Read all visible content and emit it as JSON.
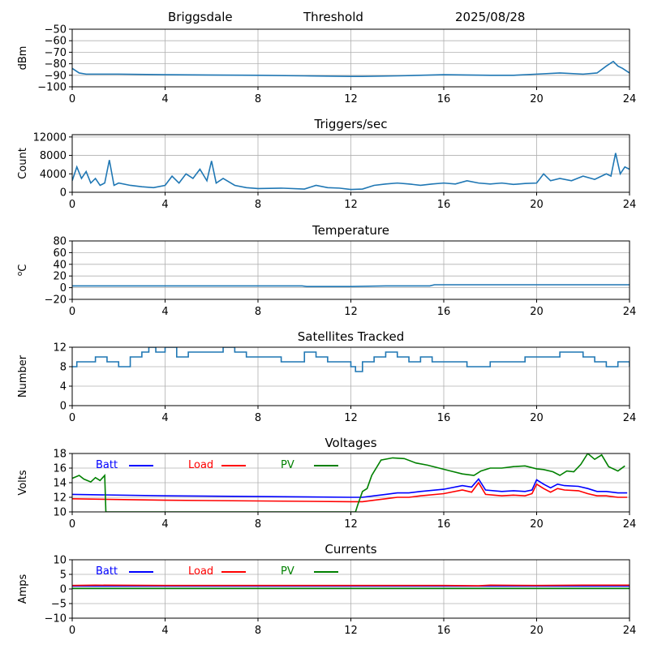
{
  "header": {
    "site": "Briggsdale",
    "threshold": "Threshold",
    "date": "2025/08/28"
  },
  "colors": {
    "series": "#1f77b4",
    "batt": "#0000ff",
    "load": "#ff0000",
    "pv": "#008000",
    "grid": "#b0b0b0"
  },
  "chart_data": [
    {
      "type": "line",
      "title": "",
      "ylabel": "dBm",
      "xlim": [
        0,
        24
      ],
      "xticks": [
        0,
        4,
        8,
        12,
        16,
        20,
        24
      ],
      "ylim": [
        -100,
        -50
      ],
      "yticks": [
        -100,
        -90,
        -80,
        -70,
        -60,
        -50
      ],
      "grid": true,
      "series": [
        {
          "x": [
            0,
            0.3,
            0.6,
            1,
            2,
            4,
            8,
            10,
            12,
            12.5,
            14,
            16,
            18,
            19,
            20,
            21,
            22,
            22.6,
            23,
            23.3,
            23.5,
            23.7,
            24
          ],
          "values": [
            -84,
            -88,
            -89,
            -89,
            -89,
            -89.5,
            -90,
            -90.5,
            -91,
            -91,
            -90.5,
            -89.5,
            -90,
            -90,
            -89,
            -88,
            -89,
            -88,
            -82,
            -78,
            -82,
            -84,
            -88
          ]
        }
      ]
    },
    {
      "type": "line",
      "title": "Triggers/sec",
      "ylabel": "Count",
      "xlim": [
        0,
        24
      ],
      "xticks": [
        0,
        4,
        8,
        12,
        16,
        20,
        24
      ],
      "ylim": [
        0,
        12500
      ],
      "yticks": [
        0,
        4000,
        8000,
        12000
      ],
      "grid": true,
      "series": [
        {
          "x": [
            0,
            0.2,
            0.4,
            0.6,
            0.8,
            1,
            1.2,
            1.4,
            1.6,
            1.8,
            2,
            2.5,
            3,
            3.5,
            4,
            4.3,
            4.6,
            4.9,
            5.2,
            5.5,
            5.8,
            6,
            6.2,
            6.5,
            7,
            7.5,
            8,
            9,
            10,
            10.5,
            11,
            11.5,
            12,
            12.5,
            13,
            13.5,
            14,
            14.5,
            15,
            15.5,
            16,
            16.5,
            17,
            17.5,
            18,
            18.5,
            19,
            19.5,
            20,
            20.3,
            20.6,
            21,
            21.5,
            22,
            22.5,
            23,
            23.2,
            23.4,
            23.6,
            23.8,
            24
          ],
          "values": [
            2500,
            5500,
            3000,
            4500,
            2000,
            3000,
            1500,
            2000,
            7000,
            1500,
            2000,
            1500,
            1200,
            1000,
            1500,
            3500,
            2000,
            4000,
            3000,
            5000,
            2500,
            6800,
            2000,
            3000,
            1500,
            1000,
            800,
            900,
            700,
            1500,
            1000,
            900,
            600,
            700,
            1500,
            1800,
            2000,
            1800,
            1500,
            1800,
            2000,
            1800,
            2500,
            2000,
            1800,
            2000,
            1700,
            1900,
            2000,
            4000,
            2500,
            3000,
            2500,
            3500,
            2800,
            4000,
            3500,
            8500,
            4000,
            5500,
            5000
          ]
        }
      ]
    },
    {
      "type": "line",
      "title": "Temperature",
      "ylabel": "°C",
      "ylabel_sup": "o",
      "ylabel_main": "C",
      "xlim": [
        0,
        24
      ],
      "xticks": [
        0,
        4,
        8,
        12,
        16,
        20,
        24
      ],
      "ylim": [
        -20,
        80
      ],
      "yticks": [
        -20,
        0,
        20,
        40,
        60,
        80
      ],
      "grid": true,
      "series": [
        {
          "x": [
            0,
            4,
            8,
            9.9,
            10.1,
            12,
            13.5,
            15.4,
            15.6,
            20,
            24
          ],
          "values": [
            3,
            3,
            3,
            3,
            2,
            2,
            3,
            3,
            5,
            5,
            5
          ]
        }
      ]
    },
    {
      "type": "line",
      "step": true,
      "title": "Satellites Tracked",
      "ylabel": "Number",
      "xlim": [
        0,
        24
      ],
      "xticks": [
        0,
        4,
        8,
        12,
        16,
        20,
        24
      ],
      "ylim": [
        0,
        12
      ],
      "yticks": [
        0,
        4,
        8,
        12
      ],
      "grid": true,
      "series": [
        {
          "x": [
            0,
            0.2,
            0.5,
            1,
            1.5,
            2,
            2.5,
            3,
            3.3,
            3.6,
            4,
            4.5,
            5,
            5.5,
            6,
            6.5,
            7,
            7.5,
            8,
            9,
            9.5,
            10,
            10.5,
            11,
            11.5,
            12,
            12.2,
            12.5,
            13,
            13.5,
            14,
            14.5,
            15,
            15.5,
            16,
            17,
            17.5,
            18,
            19,
            19.5,
            20,
            21,
            22,
            22.5,
            23,
            23.5,
            24
          ],
          "values": [
            8,
            9,
            9,
            10,
            9,
            8,
            10,
            11,
            12,
            11,
            12,
            10,
            11,
            11,
            11,
            12,
            11,
            10,
            10,
            9,
            9,
            11,
            10,
            9,
            9,
            8,
            7,
            9,
            10,
            11,
            10,
            9,
            10,
            9,
            9,
            8,
            8,
            9,
            9,
            10,
            10,
            11,
            10,
            9,
            8,
            9,
            8
          ]
        }
      ]
    },
    {
      "type": "line",
      "title": "Voltages",
      "ylabel": "Volts",
      "xlim": [
        0,
        24
      ],
      "xticks": [
        0,
        4,
        8,
        12,
        16,
        20,
        24
      ],
      "ylim": [
        10,
        18
      ],
      "yticks": [
        10,
        12,
        14,
        16,
        18
      ],
      "grid": true,
      "legend": "top-left",
      "series": [
        {
          "name": "Batt",
          "color": "batt",
          "x": [
            0,
            4,
            8,
            12,
            12.5,
            13,
            13.5,
            14,
            14.5,
            15,
            16,
            16.8,
            17.2,
            17.5,
            17.8,
            18.5,
            19,
            19.5,
            19.8,
            20,
            20.3,
            20.6,
            20.9,
            21.2,
            21.8,
            22.2,
            22.6,
            23,
            23.5,
            23.9
          ],
          "values": [
            12.4,
            12.2,
            12.1,
            12.0,
            12.0,
            12.2,
            12.4,
            12.6,
            12.6,
            12.8,
            13.1,
            13.6,
            13.4,
            14.5,
            13.0,
            12.8,
            12.9,
            12.8,
            13.0,
            14.4,
            13.8,
            13.3,
            13.8,
            13.6,
            13.5,
            13.2,
            12.8,
            12.8,
            12.6,
            12.6
          ]
        },
        {
          "name": "Load",
          "color": "load",
          "x": [
            0,
            4,
            8,
            12,
            12.5,
            13,
            13.5,
            14,
            14.5,
            15,
            16,
            16.8,
            17.2,
            17.5,
            17.8,
            18.5,
            19,
            19.5,
            19.8,
            20,
            20.3,
            20.6,
            20.9,
            21.2,
            21.8,
            22.2,
            22.6,
            23,
            23.5,
            23.9
          ],
          "values": [
            11.8,
            11.6,
            11.5,
            11.4,
            11.4,
            11.6,
            11.8,
            12.0,
            12.0,
            12.2,
            12.5,
            13.0,
            12.7,
            14.0,
            12.4,
            12.2,
            12.3,
            12.2,
            12.5,
            13.8,
            13.2,
            12.7,
            13.2,
            13.0,
            12.9,
            12.5,
            12.2,
            12.2,
            12.0,
            12.0
          ]
        },
        {
          "name": "PV",
          "color": "pv",
          "x": [
            0,
            0.3,
            0.5,
            0.8,
            1,
            1.2,
            1.4,
            1.45,
            12.2,
            12.3,
            12.5,
            12.7,
            12.9,
            13.3,
            13.8,
            14.3,
            14.8,
            15.3,
            15.8,
            16.3,
            16.8,
            17.3,
            17.6,
            18,
            18.5,
            19,
            19.5,
            20,
            20.3,
            20.7,
            21,
            21.3,
            21.6,
            21.9,
            22.2,
            22.5,
            22.8,
            23.1,
            23.5,
            23.8
          ],
          "values": [
            14.6,
            15.0,
            14.5,
            14.1,
            14.7,
            14.3,
            15.0,
            10.0,
            10.0,
            11.0,
            12.8,
            13.2,
            15.0,
            17.1,
            17.4,
            17.3,
            16.7,
            16.4,
            16.0,
            15.6,
            15.2,
            15.0,
            15.6,
            16.0,
            16.0,
            16.2,
            16.3,
            15.9,
            15.8,
            15.5,
            15.0,
            15.6,
            15.5,
            16.5,
            18.0,
            17.2,
            17.8,
            16.2,
            15.6,
            16.3
          ]
        }
      ]
    },
    {
      "type": "line",
      "title": "Currents",
      "ylabel": "Amps",
      "xlim": [
        0,
        24
      ],
      "xticks": [
        0,
        4,
        8,
        12,
        16,
        20,
        24
      ],
      "ylim": [
        -10,
        10
      ],
      "yticks": [
        -10,
        -5,
        0,
        5,
        10
      ],
      "grid": true,
      "legend": "top-left",
      "series": [
        {
          "name": "Batt",
          "color": "batt",
          "x": [
            0,
            24
          ],
          "values": [
            1.0,
            1.0
          ]
        },
        {
          "name": "Load",
          "color": "load",
          "x": [
            0,
            1,
            4,
            8,
            12,
            16,
            17.5,
            18,
            20,
            22,
            24
          ],
          "values": [
            1.2,
            1.3,
            1.2,
            1.2,
            1.2,
            1.2,
            1.1,
            1.3,
            1.2,
            1.3,
            1.3
          ]
        },
        {
          "name": "PV",
          "color": "pv",
          "x": [
            0,
            24
          ],
          "values": [
            0.2,
            0.2
          ]
        }
      ]
    }
  ]
}
